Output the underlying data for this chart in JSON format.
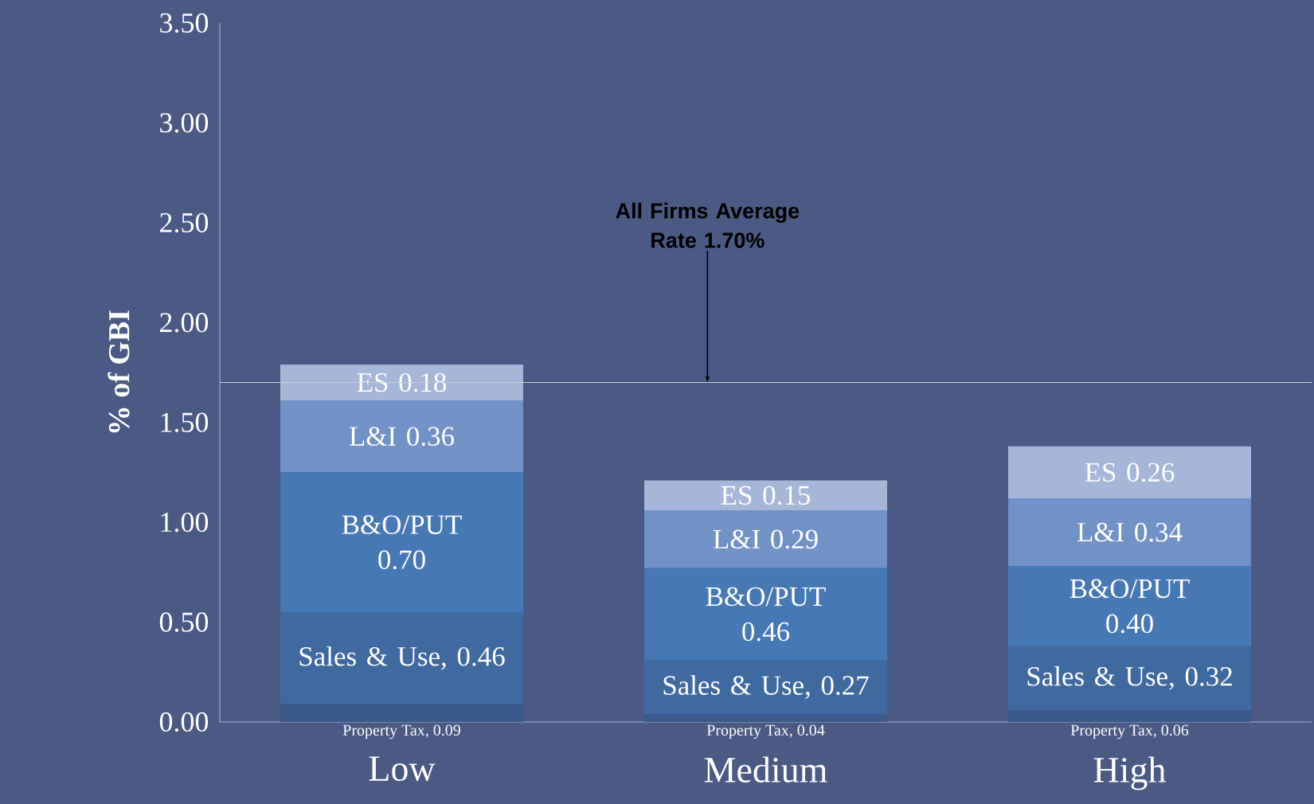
{
  "chart_data": {
    "type": "bar",
    "stacked": true,
    "ylabel": "% of GBI",
    "categories": [
      "Low",
      "Medium",
      "High"
    ],
    "series": [
      {
        "color": "#3a5a8c",
        "values": [
          0.09,
          0.04,
          0.06
        ],
        "value_labels": [
          "Property Tax,  0.09",
          "Property Tax,  0.04",
          "Property Tax,  0.06"
        ]
      },
      {
        "color": "#3f6a9f",
        "values": [
          0.46,
          0.27,
          0.32
        ],
        "value_labels": [
          "Sales & Use, 0.46",
          "Sales & Use, 0.27",
          "Sales & Use, 0.32"
        ]
      },
      {
        "color": "#4679b4",
        "values": [
          0.7,
          0.46,
          0.4
        ],
        "value_labels": [
          "B&O/PUT 0.70",
          "B&O/PUT 0.46",
          "B&O/PUT 0.40"
        ]
      },
      {
        "color": "#7092c6",
        "values": [
          0.36,
          0.29,
          0.34
        ],
        "value_labels": [
          "L&I  0.36",
          "L&I  0.29",
          "L&I  0.34"
        ]
      },
      {
        "color": "#a6b6d9",
        "values": [
          0.18,
          0.15,
          0.26
        ],
        "value_labels": [
          "ES  0.18",
          "ES  0.15",
          "ES  0.26"
        ]
      }
    ],
    "ylim": [
      0,
      3.5
    ],
    "yticks": [
      {
        "value": 0,
        "label": "0.00"
      },
      {
        "value": 0.5,
        "label": "0.50"
      },
      {
        "value": 1,
        "label": "1.00"
      },
      {
        "value": 1.5,
        "label": "1.50"
      },
      {
        "value": 2,
        "label": "2.00"
      },
      {
        "value": 2.5,
        "label": "2.50"
      },
      {
        "value": 3,
        "label": "3.00"
      },
      {
        "value": 3.5,
        "label": "3.50"
      }
    ],
    "ref_lines": [
      {
        "axis": "y",
        "value": 1.7,
        "color": "#c8cdda"
      }
    ],
    "annotations": [
      {
        "text": "All Firms Average Rate 1.70%",
        "y": 1.7
      }
    ],
    "grid": false
  }
}
